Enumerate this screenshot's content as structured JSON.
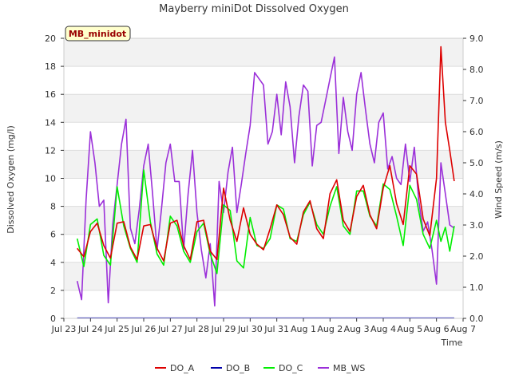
{
  "chart_data": {
    "type": "line",
    "title": "Mayberry miniDot Dissolved Oxygen",
    "xlabel": "Time",
    "ylabel": "Dissolved Oxygen (mg/l)",
    "y2label": "Wind Speed (m/s)",
    "annotation": "MB_minidot",
    "grid": true,
    "legend_position": "bottom",
    "xlim": [
      "2023-07-23",
      "2023-08-07"
    ],
    "ylim": [
      0,
      20
    ],
    "y2lim": [
      0,
      9
    ],
    "x_ticks": [
      "Jul 23",
      "Jul 24",
      "Jul 25",
      "Jul 26",
      "Jul 27",
      "Jul 28",
      "Jul 29",
      "Jul 30",
      "Jul 31",
      "Aug 1",
      "Aug 2",
      "Aug 3",
      "Aug 4",
      "Aug 5",
      "Aug 6",
      "Aug 7"
    ],
    "y_ticks": [
      "0",
      "2",
      "4",
      "6",
      "8",
      "10",
      "12",
      "14",
      "16",
      "18",
      "20"
    ],
    "y2_ticks": [
      "0.0",
      "1.0",
      "2.0",
      "3.0",
      "4.0",
      "5.0",
      "6.0",
      "7.0",
      "8.0",
      "9.0"
    ],
    "series": [
      {
        "name": "DO_A",
        "axis": "left",
        "color": "#dd0000",
        "x": [
          "Jul 23 12:00",
          "Jul 23 18:00",
          "Jul 24 00:00",
          "Jul 24 06:00",
          "Jul 24 12:00",
          "Jul 24 18:00",
          "Jul 25 00:00",
          "Jul 25 06:00",
          "Jul 25 12:00",
          "Jul 25 18:00",
          "Jul 26 00:00",
          "Jul 26 06:00",
          "Jul 26 12:00",
          "Jul 26 18:00",
          "Jul 27 00:00",
          "Jul 27 06:00",
          "Jul 27 12:00",
          "Jul 27 18:00",
          "Jul 28 00:00",
          "Jul 28 06:00",
          "Jul 28 12:00",
          "Jul 28 18:00",
          "Jul 29 00:00",
          "Jul 29 06:00",
          "Jul 29 12:00",
          "Jul 29 18:00",
          "Jul 30 00:00",
          "Jul 30 06:00",
          "Jul 30 12:00",
          "Jul 30 18:00",
          "Jul 31 00:00",
          "Jul 31 06:00",
          "Jul 31 12:00",
          "Jul 31 18:00",
          "Aug 1 00:00",
          "Aug 1 06:00",
          "Aug 1 12:00",
          "Aug 1 18:00",
          "Aug 2 00:00",
          "Aug 2 06:00",
          "Aug 2 12:00",
          "Aug 2 18:00",
          "Aug 3 00:00",
          "Aug 3 06:00",
          "Aug 3 12:00",
          "Aug 3 18:00",
          "Aug 4 00:00",
          "Aug 4 06:00",
          "Aug 4 12:00",
          "Aug 4 18:00",
          "Aug 5 00:00",
          "Aug 5 06:00",
          "Aug 5 12:00",
          "Aug 5 18:00",
          "Aug 6 00:00",
          "Aug 6 04:00",
          "Aug 6 08:00",
          "Aug 6 12:00",
          "Aug 6 16:00"
        ],
        "y": [
          5.0,
          4.4,
          6.2,
          6.8,
          5.2,
          4.3,
          6.8,
          6.9,
          5.1,
          4.2,
          6.6,
          6.7,
          5.0,
          4.1,
          6.8,
          7.0,
          5.2,
          4.2,
          6.9,
          7.0,
          4.8,
          4.2,
          9.3,
          7.0,
          5.5,
          7.9,
          6.0,
          5.3,
          4.9,
          6.4,
          8.1,
          7.4,
          5.8,
          5.3,
          7.6,
          8.4,
          6.4,
          5.7,
          8.9,
          9.9,
          7.0,
          6.2,
          8.7,
          9.5,
          7.4,
          6.4,
          9.3,
          10.9,
          8.2,
          6.7,
          10.9,
          10.3,
          7.1,
          5.9,
          10.0,
          19.4,
          14.0,
          12.0,
          9.8
        ]
      },
      {
        "name": "DO_B",
        "axis": "left",
        "color": "#0000aa",
        "x": [
          "Jul 23 12:00",
          "Aug 6 16:00"
        ],
        "y": [
          0.02,
          0.02
        ]
      },
      {
        "name": "DO_C",
        "axis": "left",
        "color": "#00ee00",
        "x": [
          "Jul 23 12:00",
          "Jul 23 18:00",
          "Jul 24 00:00",
          "Jul 24 06:00",
          "Jul 24 12:00",
          "Jul 24 18:00",
          "Jul 25 00:00",
          "Jul 25 06:00",
          "Jul 25 12:00",
          "Jul 25 18:00",
          "Jul 26 00:00",
          "Jul 26 06:00",
          "Jul 26 12:00",
          "Jul 26 18:00",
          "Jul 27 00:00",
          "Jul 27 06:00",
          "Jul 27 12:00",
          "Jul 27 18:00",
          "Jul 28 00:00",
          "Jul 28 06:00",
          "Jul 28 12:00",
          "Jul 28 18:00",
          "Jul 29 00:00",
          "Jul 29 06:00",
          "Jul 29 12:00",
          "Jul 29 18:00",
          "Jul 30 00:00",
          "Jul 30 06:00",
          "Jul 30 12:00",
          "Jul 30 18:00",
          "Jul 31 00:00",
          "Jul 31 06:00",
          "Jul 31 12:00",
          "Jul 31 18:00",
          "Aug 1 00:00",
          "Aug 1 06:00",
          "Aug 1 12:00",
          "Aug 1 18:00",
          "Aug 2 00:00",
          "Aug 2 06:00",
          "Aug 2 12:00",
          "Aug 2 18:00",
          "Aug 3 00:00",
          "Aug 3 06:00",
          "Aug 3 12:00",
          "Aug 3 18:00",
          "Aug 4 00:00",
          "Aug 4 06:00",
          "Aug 4 12:00",
          "Aug 4 18:00",
          "Aug 5 00:00",
          "Aug 5 06:00",
          "Aug 5 12:00",
          "Aug 5 18:00",
          "Aug 6 00:00",
          "Aug 6 04:00",
          "Aug 6 08:00",
          "Aug 6 12:00",
          "Aug 6 16:00"
        ],
        "y": [
          5.7,
          3.7,
          6.7,
          7.1,
          4.5,
          3.8,
          9.4,
          6.6,
          5.0,
          4.0,
          10.6,
          6.9,
          4.6,
          3.8,
          7.3,
          6.6,
          4.8,
          4.0,
          6.2,
          6.8,
          4.6,
          3.2,
          8.1,
          7.7,
          4.1,
          3.6,
          7.2,
          5.2,
          5.0,
          5.7,
          8.1,
          7.8,
          5.7,
          5.5,
          7.4,
          8.3,
          6.7,
          6.0,
          8.0,
          9.4,
          6.6,
          6.0,
          9.1,
          9.1,
          7.3,
          6.6,
          9.6,
          9.2,
          7.3,
          5.2,
          9.5,
          8.5,
          6.0,
          5.0,
          7.0,
          5.5,
          6.5,
          4.8,
          6.6
        ]
      },
      {
        "name": "MB_WS",
        "axis": "right",
        "color": "#9b30d9",
        "x": [
          "Jul 23 12:00",
          "Jul 23 16:00",
          "Jul 23 20:00",
          "Jul 24 00:00",
          "Jul 24 04:00",
          "Jul 24 08:00",
          "Jul 24 12:00",
          "Jul 24 16:00",
          "Jul 24 20:00",
          "Jul 25 00:00",
          "Jul 25 04:00",
          "Jul 25 08:00",
          "Jul 25 12:00",
          "Jul 25 16:00",
          "Jul 25 20:00",
          "Jul 26 00:00",
          "Jul 26 04:00",
          "Jul 26 08:00",
          "Jul 26 12:00",
          "Jul 26 16:00",
          "Jul 26 20:00",
          "Jul 27 00:00",
          "Jul 27 04:00",
          "Jul 27 08:00",
          "Jul 27 12:00",
          "Jul 27 16:00",
          "Jul 27 20:00",
          "Jul 28 00:00",
          "Jul 28 04:00",
          "Jul 28 08:00",
          "Jul 28 12:00",
          "Jul 28 16:00",
          "Jul 28 20:00",
          "Jul 29 00:00",
          "Jul 29 04:00",
          "Jul 29 08:00",
          "Jul 29 12:00",
          "Jul 29 16:00",
          "Jul 29 20:00",
          "Jul 30 00:00",
          "Jul 30 04:00",
          "Jul 30 08:00",
          "Jul 30 12:00",
          "Jul 30 16:00",
          "Jul 30 20:00",
          "Jul 31 00:00",
          "Jul 31 04:00",
          "Jul 31 08:00",
          "Jul 31 12:00",
          "Jul 31 16:00",
          "Jul 31 20:00",
          "Aug 1 00:00",
          "Aug 1 04:00",
          "Aug 1 08:00",
          "Aug 1 12:00",
          "Aug 1 16:00",
          "Aug 1 20:00",
          "Aug 2 00:00",
          "Aug 2 04:00",
          "Aug 2 08:00",
          "Aug 2 12:00",
          "Aug 2 16:00",
          "Aug 2 20:00",
          "Aug 3 00:00",
          "Aug 3 04:00",
          "Aug 3 08:00",
          "Aug 3 12:00",
          "Aug 3 16:00",
          "Aug 3 20:00",
          "Aug 4 00:00",
          "Aug 4 04:00",
          "Aug 4 08:00",
          "Aug 4 12:00",
          "Aug 4 16:00",
          "Aug 4 20:00",
          "Aug 5 00:00",
          "Aug 5 04:00",
          "Aug 5 08:00",
          "Aug 5 12:00",
          "Aug 5 16:00",
          "Aug 5 20:00",
          "Aug 6 00:00",
          "Aug 6 04:00",
          "Aug 6 08:00",
          "Aug 6 12:00",
          "Aug 6 16:00"
        ],
        "y": [
          1.2,
          0.6,
          3.8,
          6.0,
          5.0,
          3.6,
          3.8,
          0.5,
          3.0,
          4.3,
          5.6,
          6.4,
          2.9,
          2.4,
          3.5,
          4.9,
          5.6,
          4.0,
          2.2,
          3.5,
          5.0,
          5.6,
          4.4,
          4.4,
          2.2,
          4.0,
          5.4,
          3.4,
          2.2,
          1.3,
          2.4,
          0.4,
          4.4,
          3.4,
          4.7,
          5.5,
          3.4,
          4.3,
          5.3,
          6.2,
          7.9,
          7.7,
          7.5,
          5.6,
          6.0,
          7.2,
          5.9,
          7.6,
          6.8,
          5.0,
          6.5,
          7.5,
          7.3,
          4.9,
          6.2,
          6.3,
          7.0,
          7.7,
          8.4,
          5.3,
          7.1,
          6.0,
          5.4,
          7.2,
          7.9,
          6.7,
          5.6,
          5.0,
          6.3,
          6.6,
          4.8,
          5.2,
          4.5,
          4.3,
          5.6,
          4.4,
          5.5,
          3.8,
          2.8,
          3.1,
          2.2,
          1.1,
          5.0,
          4.0,
          3.0,
          2.9
        ]
      }
    ]
  }
}
